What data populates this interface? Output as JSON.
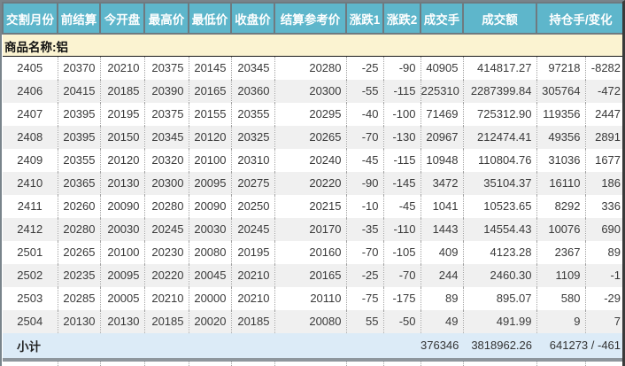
{
  "page": {
    "description_label": "futures-daily-quotes-table"
  },
  "colors": {
    "header_teal": "#5EB6CB",
    "header_border_gray": "#6F7A80",
    "product_row_yellow": "#FBF3D1",
    "subtotal_blue": "#DCEBF7",
    "alt_row_gray": "#F0F0F0",
    "text_dark": "#3A3A3A",
    "frame_border": "#79848B",
    "right_edge_dark": "#3A3A3A",
    "divider_gray": "#8E969D"
  },
  "table": {
    "headers": [
      "交割月份",
      "前结算",
      "今开盘",
      "最高价",
      "最低价",
      "收盘价",
      "结算参考价",
      "涨跌1",
      "涨跌2",
      "成交手",
      "成交额",
      "持仓手/变化"
    ],
    "row_fields": [
      "month",
      "prev_settlement",
      "open",
      "high",
      "low",
      "close",
      "settlement_ref",
      "change1",
      "change2",
      "volume",
      "turnover",
      "open_interest",
      "oi_change"
    ],
    "product_label": "商品名称:铝",
    "rows": [
      [
        "2405",
        "20370",
        "20210",
        "20375",
        "20145",
        "20345",
        "20280",
        "-25",
        "-90",
        "40905",
        "414817.27",
        "97218",
        "-8282"
      ],
      [
        "2406",
        "20415",
        "20185",
        "20390",
        "20165",
        "20360",
        "20300",
        "-55",
        "-115",
        "225310",
        "2287399.84",
        "305764",
        "-472"
      ],
      [
        "2407",
        "20395",
        "20195",
        "20375",
        "20155",
        "20355",
        "20295",
        "-40",
        "-100",
        "71469",
        "725312.90",
        "119356",
        "2447"
      ],
      [
        "2408",
        "20395",
        "20150",
        "20345",
        "20120",
        "20325",
        "20265",
        "-70",
        "-130",
        "20967",
        "212474.41",
        "49356",
        "2891"
      ],
      [
        "2409",
        "20355",
        "20120",
        "20320",
        "20100",
        "20310",
        "20240",
        "-45",
        "-115",
        "10948",
        "110804.76",
        "31036",
        "1677"
      ],
      [
        "2410",
        "20365",
        "20130",
        "20300",
        "20095",
        "20275",
        "20220",
        "-90",
        "-145",
        "3472",
        "35104.37",
        "16110",
        "186"
      ],
      [
        "2411",
        "20260",
        "20090",
        "20280",
        "20090",
        "20250",
        "20215",
        "-10",
        "-45",
        "1041",
        "10523.65",
        "8292",
        "336"
      ],
      [
        "2412",
        "20280",
        "20030",
        "20245",
        "20030",
        "20245",
        "20170",
        "-35",
        "-110",
        "1443",
        "14554.43",
        "10076",
        "690"
      ],
      [
        "2501",
        "20265",
        "20100",
        "20230",
        "20080",
        "20195",
        "20160",
        "-70",
        "-105",
        "409",
        "4123.28",
        "2367",
        "89"
      ],
      [
        "2502",
        "20235",
        "20095",
        "20220",
        "20045",
        "20210",
        "20165",
        "-25",
        "-70",
        "244",
        "2460.30",
        "1109",
        "-1"
      ],
      [
        "2503",
        "20285",
        "20005",
        "20210",
        "20000",
        "20210",
        "20110",
        "-75",
        "-175",
        "89",
        "895.07",
        "580",
        "-29"
      ],
      [
        "2504",
        "20130",
        "20130",
        "20185",
        "20020",
        "20185",
        "20080",
        "55",
        "-50",
        "49",
        "491.99",
        "9",
        "7"
      ]
    ],
    "subtotal": {
      "label": "小计",
      "volume": "376346",
      "turnover": "3818962.26",
      "open_interest_change": "641273 / -461"
    }
  }
}
